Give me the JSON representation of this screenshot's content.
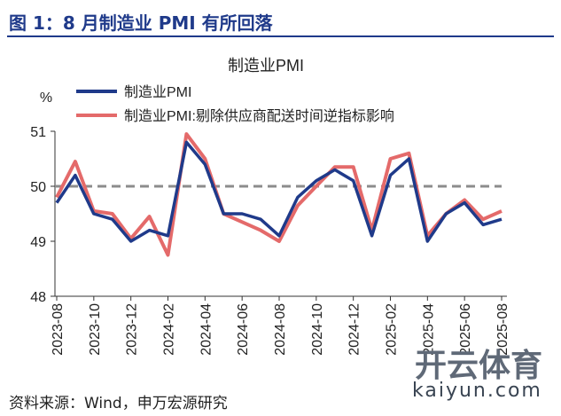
{
  "figure": {
    "title": "图 1：8 月制造业 PMI 有所回落",
    "source": "资料来源：Wind，申万宏源研究"
  },
  "watermark": {
    "text": "开云体育",
    "url": "kaiyun.com"
  },
  "chart_data": {
    "type": "line",
    "title": "制造业PMI",
    "ylabel": "%",
    "xlabel": "",
    "ylim": [
      48,
      51
    ],
    "yticks": [
      48,
      49,
      50,
      51
    ],
    "grid": false,
    "legend_position": "top",
    "reference_line": 50,
    "x": [
      "2023-08",
      "2023-09",
      "2023-10",
      "2023-11",
      "2023-12",
      "2024-01",
      "2024-02",
      "2024-03",
      "2024-04",
      "2024-05",
      "2024-06",
      "2024-07",
      "2024-08",
      "2024-09",
      "2024-10",
      "2024-11",
      "2024-12",
      "2025-01",
      "2025-02",
      "2025-03",
      "2025-04",
      "2025-05",
      "2025-06",
      "2025-07",
      "2025-08"
    ],
    "xtick_labels": [
      "2023-08",
      "2023-10",
      "2023-12",
      "2024-02",
      "2024-04",
      "2024-06",
      "2024-08",
      "2024-10",
      "2024-12",
      "2025-02",
      "2025-04",
      "2025-06",
      "2025-08"
    ],
    "series": [
      {
        "name": "制造业PMI",
        "color": "#1f3a8a",
        "values": [
          49.7,
          50.2,
          49.5,
          49.4,
          49.0,
          49.2,
          49.1,
          50.8,
          50.4,
          49.5,
          49.5,
          49.4,
          49.1,
          49.8,
          50.1,
          50.3,
          50.1,
          49.1,
          50.2,
          50.5,
          49.0,
          49.5,
          49.7,
          49.3,
          49.4
        ]
      },
      {
        "name": "制造业PMI:剔除供应商配送时间逆指标影响",
        "color": "#e46a6a",
        "values": [
          49.8,
          50.45,
          49.55,
          49.5,
          49.05,
          49.45,
          48.75,
          50.95,
          50.5,
          49.5,
          49.35,
          49.2,
          49.0,
          49.65,
          50.0,
          50.35,
          50.35,
          49.2,
          50.5,
          50.6,
          49.1,
          49.5,
          49.75,
          49.4,
          49.55
        ]
      }
    ]
  }
}
